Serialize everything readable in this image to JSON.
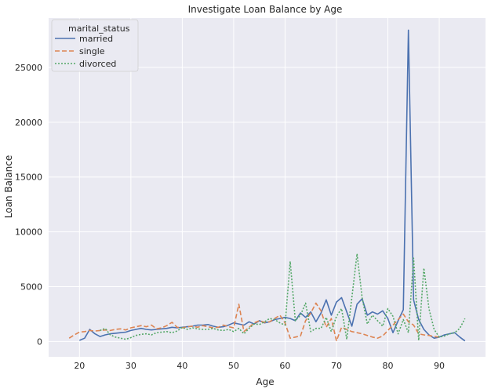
{
  "chart_data": {
    "type": "line",
    "title": "Investigate Loan Balance by Age",
    "xlabel": "Age",
    "ylabel": "Loan Balance",
    "xlim": [
      14,
      99
    ],
    "ylim": [
      -1400,
      29500
    ],
    "xticks": [
      20,
      30,
      40,
      50,
      60,
      70,
      80,
      90
    ],
    "yticks": [
      0,
      5000,
      10000,
      15000,
      20000,
      25000
    ],
    "grid": true,
    "legend": {
      "title": "marital_status",
      "placement": "top-left"
    },
    "series": [
      {
        "name": "married",
        "color": "#4c72b0",
        "dash": "solid",
        "x": [
          20,
          21,
          22,
          23,
          24,
          25,
          26,
          27,
          28,
          29,
          30,
          31,
          32,
          33,
          34,
          35,
          36,
          37,
          38,
          39,
          40,
          41,
          42,
          43,
          44,
          45,
          46,
          47,
          48,
          49,
          50,
          51,
          52,
          53,
          54,
          55,
          56,
          57,
          58,
          59,
          60,
          61,
          62,
          63,
          64,
          65,
          66,
          67,
          68,
          69,
          70,
          71,
          72,
          73,
          74,
          75,
          76,
          77,
          78,
          79,
          80,
          81,
          82,
          83,
          84,
          85,
          86,
          87,
          88,
          89,
          90,
          91,
          92,
          93,
          94,
          95
        ],
        "y": [
          100,
          300,
          1100,
          700,
          450,
          600,
          700,
          750,
          800,
          850,
          1000,
          1100,
          1200,
          1100,
          1050,
          1100,
          1150,
          1200,
          1300,
          1250,
          1300,
          1350,
          1400,
          1500,
          1500,
          1550,
          1400,
          1300,
          1350,
          1500,
          1700,
          1600,
          1500,
          1800,
          1600,
          1900,
          1700,
          1800,
          2000,
          2100,
          2200,
          2100,
          1900,
          2600,
          2200,
          2700,
          1800,
          2600,
          3800,
          2400,
          3600,
          4000,
          2700,
          1400,
          3400,
          3900,
          2400,
          2700,
          2500,
          2800,
          2100,
          800,
          1900,
          2900,
          28400,
          3800,
          2000,
          1100,
          600,
          300,
          400,
          600,
          700,
          800,
          400,
          50
        ]
      },
      {
        "name": "single",
        "color": "#dd8452",
        "dash": "6,3",
        "x": [
          18,
          19,
          20,
          21,
          22,
          23,
          24,
          25,
          26,
          27,
          28,
          29,
          30,
          31,
          32,
          33,
          34,
          35,
          36,
          37,
          38,
          39,
          40,
          41,
          42,
          43,
          44,
          45,
          46,
          47,
          48,
          49,
          50,
          51,
          52,
          53,
          54,
          55,
          56,
          57,
          58,
          59,
          60,
          61,
          62,
          63,
          64,
          65,
          66,
          67,
          68,
          69,
          70,
          71,
          72,
          73,
          74,
          75,
          76,
          77,
          78,
          79,
          80,
          81,
          82,
          83,
          84,
          85,
          86,
          87,
          88,
          89,
          90
        ],
        "y": [
          300,
          600,
          850,
          900,
          1000,
          950,
          1000,
          1050,
          1000,
          1100,
          1150,
          1050,
          1250,
          1350,
          1450,
          1350,
          1500,
          1150,
          1250,
          1450,
          1750,
          1300,
          1250,
          1350,
          1400,
          1300,
          1450,
          1350,
          1250,
          1300,
          1500,
          1350,
          1250,
          3400,
          900,
          1300,
          1700,
          1900,
          1750,
          1800,
          2100,
          2400,
          1700,
          300,
          400,
          500,
          1900,
          2600,
          3500,
          2800,
          1300,
          2100,
          50,
          1300,
          1100,
          900,
          800,
          700,
          550,
          400,
          300,
          500,
          1000,
          1500,
          2000,
          2500,
          1800,
          1500,
          700,
          600,
          550,
          450,
          400
        ]
      },
      {
        "name": "divorced",
        "color": "#55a868",
        "dash": "2,2",
        "x": [
          24,
          25,
          26,
          27,
          28,
          29,
          30,
          31,
          32,
          33,
          34,
          35,
          36,
          37,
          38,
          39,
          40,
          41,
          42,
          43,
          44,
          45,
          46,
          47,
          48,
          49,
          50,
          51,
          52,
          53,
          54,
          55,
          56,
          57,
          58,
          59,
          60,
          61,
          62,
          63,
          64,
          65,
          66,
          67,
          68,
          69,
          70,
          71,
          72,
          73,
          74,
          75,
          76,
          77,
          78,
          79,
          80,
          81,
          82,
          83,
          84,
          85,
          86,
          87,
          88,
          89,
          90,
          91,
          92,
          93,
          94,
          95
        ],
        "y": [
          1000,
          1200,
          600,
          400,
          300,
          200,
          350,
          550,
          650,
          700,
          600,
          800,
          850,
          900,
          800,
          950,
          1300,
          1100,
          1250,
          1150,
          1100,
          1100,
          1200,
          1050,
          1000,
          1100,
          900,
          1200,
          700,
          1200,
          1600,
          1550,
          1800,
          2100,
          2000,
          1700,
          1500,
          7300,
          1900,
          2400,
          3500,
          900,
          1200,
          1200,
          2200,
          900,
          2300,
          3000,
          200,
          4000,
          8000,
          4000,
          1600,
          2400,
          1900,
          1400,
          3000,
          2300,
          700,
          2000,
          800,
          7600,
          100,
          6700,
          3000,
          1100,
          400,
          500,
          700,
          800,
          1200,
          2100
        ]
      }
    ]
  }
}
